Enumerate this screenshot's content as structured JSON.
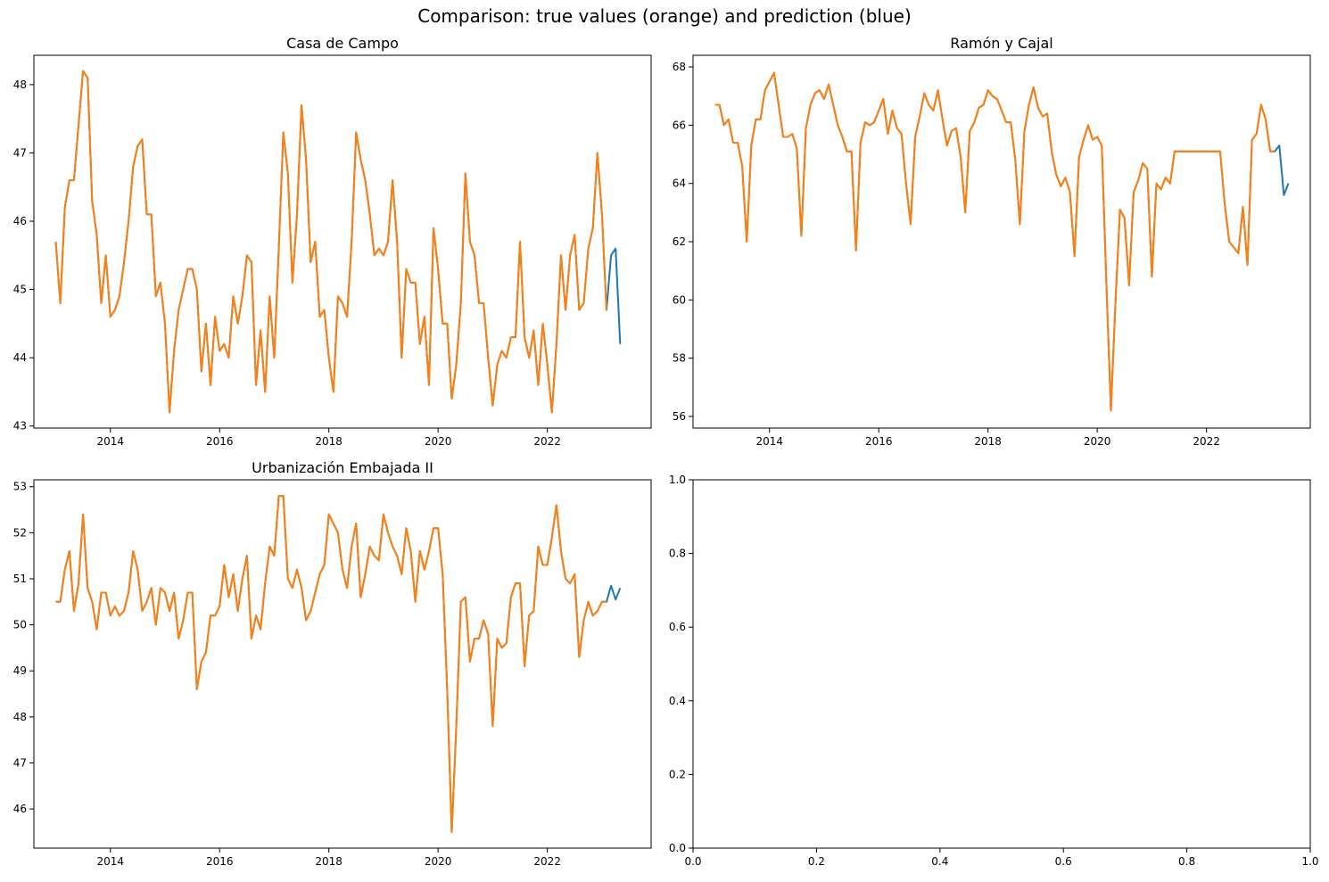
{
  "figure": {
    "suptitle": "Comparison: true values (orange) and prediction (blue)"
  },
  "colors": {
    "prediction": "#1f77b4",
    "true_values": "#ff7f0e",
    "axes": "#000000",
    "background": "#ffffff"
  },
  "chart_data": [
    {
      "type": "line",
      "title": "Casa de Campo",
      "xlabel": "",
      "ylabel": "",
      "x_start": "2013-01",
      "x_step": "1 month",
      "xlim": [
        2012.6,
        2023.9
      ],
      "ylim": [
        42.97,
        48.43
      ],
      "xticks": [
        2014,
        2016,
        2018,
        2020,
        2022
      ],
      "yticks": [
        43,
        44,
        45,
        46,
        47,
        48
      ],
      "grid": false,
      "series": [
        {
          "name": "prediction",
          "color": "#1f77b4",
          "values": [
            45.7,
            44.8,
            46.2,
            46.6,
            46.6,
            47.4,
            48.2,
            48.1,
            46.3,
            45.8,
            44.8,
            45.5,
            44.6,
            44.7,
            44.9,
            45.4,
            46.0,
            46.8,
            47.1,
            47.2,
            46.1,
            46.1,
            44.9,
            45.1,
            44.5,
            43.2,
            44.1,
            44.7,
            45.0,
            45.3,
            45.3,
            45.0,
            43.8,
            44.5,
            43.6,
            44.6,
            44.1,
            44.2,
            44.0,
            44.9,
            44.5,
            44.9,
            45.5,
            45.4,
            43.6,
            44.4,
            43.5,
            44.9,
            44.0,
            45.6,
            47.3,
            46.7,
            45.1,
            46.1,
            47.7,
            46.9,
            45.4,
            45.7,
            44.6,
            44.7,
            44.0,
            43.5,
            44.9,
            44.8,
            44.6,
            45.7,
            47.3,
            46.9,
            46.6,
            46.1,
            45.5,
            45.6,
            45.5,
            45.7,
            46.6,
            45.7,
            44.0,
            45.3,
            45.1,
            45.1,
            44.2,
            44.6,
            43.6,
            45.9,
            45.3,
            44.5,
            44.5,
            43.4,
            43.9,
            44.8,
            46.7,
            45.7,
            45.5,
            44.8,
            44.8,
            44.0,
            43.3,
            43.9,
            44.1,
            44.0,
            44.3,
            44.3,
            45.7,
            44.3,
            44.0,
            44.4,
            43.6,
            44.5,
            43.9,
            43.2,
            44.2,
            45.5,
            44.7,
            45.5,
            45.8,
            44.7,
            44.8,
            45.6,
            45.9,
            47.0,
            46.1,
            44.7,
            45.5,
            45.6,
            44.2
          ]
        },
        {
          "name": "true values",
          "color": "#ff7f0e",
          "values": [
            45.7,
            44.8,
            46.2,
            46.6,
            46.6,
            47.4,
            48.2,
            48.1,
            46.3,
            45.8,
            44.8,
            45.5,
            44.6,
            44.7,
            44.9,
            45.4,
            46.0,
            46.8,
            47.1,
            47.2,
            46.1,
            46.1,
            44.9,
            45.1,
            44.5,
            43.2,
            44.1,
            44.7,
            45.0,
            45.3,
            45.3,
            45.0,
            43.8,
            44.5,
            43.6,
            44.6,
            44.1,
            44.2,
            44.0,
            44.9,
            44.5,
            44.9,
            45.5,
            45.4,
            43.6,
            44.4,
            43.5,
            44.9,
            44.0,
            45.6,
            47.3,
            46.7,
            45.1,
            46.1,
            47.7,
            46.9,
            45.4,
            45.7,
            44.6,
            44.7,
            44.0,
            43.5,
            44.9,
            44.8,
            44.6,
            45.7,
            47.3,
            46.9,
            46.6,
            46.1,
            45.5,
            45.6,
            45.5,
            45.7,
            46.6,
            45.7,
            44.0,
            45.3,
            45.1,
            45.1,
            44.2,
            44.6,
            43.6,
            45.9,
            45.3,
            44.5,
            44.5,
            43.4,
            43.9,
            44.8,
            46.7,
            45.7,
            45.5,
            44.8,
            44.8,
            44.0,
            43.3,
            43.9,
            44.1,
            44.0,
            44.3,
            44.3,
            45.7,
            44.3,
            44.0,
            44.4,
            43.6,
            44.5,
            43.9,
            43.2,
            44.2,
            45.5,
            44.7,
            45.5,
            45.8,
            44.7,
            44.8,
            45.6,
            45.9,
            47.0,
            46.1,
            44.7
          ]
        }
      ]
    },
    {
      "type": "line",
      "title": "Ramón y Cajal",
      "xlabel": "",
      "ylabel": "",
      "x_start": "2013-01",
      "x_step": "1 month",
      "xlim": [
        2012.6,
        2023.9
      ],
      "ylim": [
        55.6,
        68.4
      ],
      "xticks": [
        2014,
        2016,
        2018,
        2020,
        2022
      ],
      "yticks": [
        56,
        58,
        60,
        62,
        64,
        66,
        68
      ],
      "grid": false,
      "series": [
        {
          "name": "prediction",
          "color": "#1f77b4",
          "values": [
            66.7,
            66.7,
            66.0,
            66.2,
            65.4,
            65.4,
            64.6,
            62.0,
            65.3,
            66.2,
            66.2,
            67.2,
            67.5,
            67.8,
            66.7,
            65.6,
            65.6,
            65.7,
            65.2,
            62.2,
            65.9,
            66.7,
            67.1,
            67.2,
            66.9,
            67.4,
            66.7,
            66.0,
            65.6,
            65.1,
            65.1,
            61.7,
            65.4,
            66.1,
            66.0,
            66.1,
            66.5,
            66.9,
            65.7,
            66.5,
            65.9,
            65.7,
            64.0,
            62.6,
            65.6,
            66.3,
            67.1,
            66.7,
            66.5,
            67.2,
            66.2,
            65.3,
            65.8,
            65.9,
            64.9,
            63.0,
            65.8,
            66.1,
            66.6,
            66.7,
            67.2,
            67.0,
            66.9,
            66.5,
            66.1,
            66.1,
            64.8,
            62.6,
            65.8,
            66.7,
            67.3,
            66.6,
            66.3,
            66.4,
            65.1,
            64.3,
            63.9,
            64.2,
            63.7,
            61.5,
            64.9,
            65.5,
            66.0,
            65.5,
            65.6,
            65.3,
            60.6,
            56.2,
            59.9,
            63.1,
            62.8,
            60.5,
            63.7,
            64.1,
            64.7,
            64.5,
            60.8,
            64.0,
            63.8,
            64.2,
            64.0,
            65.1,
            65.1,
            65.1,
            65.1,
            65.1,
            65.1,
            65.1,
            65.1,
            65.1,
            65.1,
            65.1,
            63.3,
            62.0,
            61.8,
            61.6,
            63.2,
            61.2,
            65.5,
            65.7,
            66.7,
            66.2,
            65.1,
            65.1,
            65.3,
            63.6,
            64.0
          ]
        },
        {
          "name": "true values",
          "color": "#ff7f0e",
          "values": [
            66.7,
            66.7,
            66.0,
            66.2,
            65.4,
            65.4,
            64.6,
            62.0,
            65.3,
            66.2,
            66.2,
            67.2,
            67.5,
            67.8,
            66.7,
            65.6,
            65.6,
            65.7,
            65.2,
            62.2,
            65.9,
            66.7,
            67.1,
            67.2,
            66.9,
            67.4,
            66.7,
            66.0,
            65.6,
            65.1,
            65.1,
            61.7,
            65.4,
            66.1,
            66.0,
            66.1,
            66.5,
            66.9,
            65.7,
            66.5,
            65.9,
            65.7,
            64.0,
            62.6,
            65.6,
            66.3,
            67.1,
            66.7,
            66.5,
            67.2,
            66.2,
            65.3,
            65.8,
            65.9,
            64.9,
            63.0,
            65.8,
            66.1,
            66.6,
            66.7,
            67.2,
            67.0,
            66.9,
            66.5,
            66.1,
            66.1,
            64.8,
            62.6,
            65.8,
            66.7,
            67.3,
            66.6,
            66.3,
            66.4,
            65.1,
            64.3,
            63.9,
            64.2,
            63.7,
            61.5,
            64.9,
            65.5,
            66.0,
            65.5,
            65.6,
            65.3,
            60.6,
            56.2,
            59.9,
            63.1,
            62.8,
            60.5,
            63.7,
            64.1,
            64.7,
            64.5,
            60.8,
            64.0,
            63.8,
            64.2,
            64.0,
            65.1,
            65.1,
            65.1,
            65.1,
            65.1,
            65.1,
            65.1,
            65.1,
            65.1,
            65.1,
            65.1,
            63.3,
            62.0,
            61.8,
            61.6,
            63.2,
            61.2,
            65.5,
            65.7,
            66.7,
            66.2,
            65.1,
            65.1
          ]
        }
      ]
    },
    {
      "type": "line",
      "title": "Urbanización Embajada II",
      "xlabel": "",
      "ylabel": "",
      "x_start": "2013-01",
      "x_step": "1 month",
      "xlim": [
        2012.6,
        2023.9
      ],
      "ylim": [
        45.15,
        53.15
      ],
      "xticks": [
        2014,
        2016,
        2018,
        2020,
        2022
      ],
      "yticks": [
        46,
        47,
        48,
        49,
        50,
        51,
        52,
        53
      ],
      "grid": false,
      "series": [
        {
          "name": "prediction",
          "color": "#1f77b4",
          "values": [
            50.5,
            50.5,
            51.2,
            51.6,
            50.3,
            50.9,
            52.4,
            50.8,
            50.5,
            49.9,
            50.7,
            50.7,
            50.2,
            50.4,
            50.2,
            50.3,
            50.7,
            51.6,
            51.2,
            50.3,
            50.5,
            50.8,
            50.0,
            50.8,
            50.7,
            50.3,
            50.7,
            49.7,
            50.1,
            50.7,
            50.7,
            48.6,
            49.2,
            49.4,
            50.2,
            50.2,
            50.4,
            51.3,
            50.6,
            51.1,
            50.3,
            51.0,
            51.5,
            49.7,
            50.2,
            49.9,
            50.9,
            51.7,
            51.5,
            52.8,
            52.8,
            51.0,
            50.8,
            51.2,
            50.8,
            50.1,
            50.3,
            50.7,
            51.1,
            51.3,
            52.4,
            52.2,
            52.0,
            51.2,
            50.8,
            51.7,
            52.2,
            50.6,
            51.1,
            51.7,
            51.5,
            51.4,
            52.4,
            52.0,
            51.7,
            51.5,
            51.1,
            52.1,
            51.6,
            50.5,
            51.6,
            51.2,
            51.6,
            52.1,
            52.1,
            51.1,
            48.6,
            45.5,
            47.8,
            50.5,
            50.6,
            49.2,
            49.7,
            49.7,
            50.1,
            49.8,
            47.8,
            49.7,
            49.5,
            49.6,
            50.6,
            50.9,
            50.9,
            49.1,
            50.2,
            50.3,
            51.7,
            51.3,
            51.3,
            51.9,
            52.6,
            51.6,
            51.0,
            50.9,
            51.1,
            49.3,
            50.1,
            50.5,
            50.2,
            50.3,
            50.5,
            50.5,
            50.85,
            50.55,
            50.8
          ]
        },
        {
          "name": "true values",
          "color": "#ff7f0e",
          "values": [
            50.5,
            50.5,
            51.2,
            51.6,
            50.3,
            50.9,
            52.4,
            50.8,
            50.5,
            49.9,
            50.7,
            50.7,
            50.2,
            50.4,
            50.2,
            50.3,
            50.7,
            51.6,
            51.2,
            50.3,
            50.5,
            50.8,
            50.0,
            50.8,
            50.7,
            50.3,
            50.7,
            49.7,
            50.1,
            50.7,
            50.7,
            48.6,
            49.2,
            49.4,
            50.2,
            50.2,
            50.4,
            51.3,
            50.6,
            51.1,
            50.3,
            51.0,
            51.5,
            49.7,
            50.2,
            49.9,
            50.9,
            51.7,
            51.5,
            52.8,
            52.8,
            51.0,
            50.8,
            51.2,
            50.8,
            50.1,
            50.3,
            50.7,
            51.1,
            51.3,
            52.4,
            52.2,
            52.0,
            51.2,
            50.8,
            51.7,
            52.2,
            50.6,
            51.1,
            51.7,
            51.5,
            51.4,
            52.4,
            52.0,
            51.7,
            51.5,
            51.1,
            52.1,
            51.6,
            50.5,
            51.6,
            51.2,
            51.6,
            52.1,
            52.1,
            51.1,
            48.6,
            45.5,
            47.8,
            50.5,
            50.6,
            49.2,
            49.7,
            49.7,
            50.1,
            49.8,
            47.8,
            49.7,
            49.5,
            49.6,
            50.6,
            50.9,
            50.9,
            49.1,
            50.2,
            50.3,
            51.7,
            51.3,
            51.3,
            51.9,
            52.6,
            51.6,
            51.0,
            50.9,
            51.1,
            49.3,
            50.1,
            50.5,
            50.2,
            50.3,
            50.5,
            50.5
          ]
        }
      ]
    },
    {
      "type": "line",
      "title": "",
      "xlabel": "",
      "ylabel": "",
      "xlim": [
        0,
        1
      ],
      "ylim": [
        0,
        1
      ],
      "xticks": [
        0.0,
        0.2,
        0.4,
        0.6,
        0.8,
        1.0
      ],
      "yticks": [
        0.0,
        0.2,
        0.4,
        0.6,
        0.8,
        1.0
      ],
      "xtick_labels": [
        "0.0",
        "0.2",
        "0.4",
        "0.6",
        "0.8",
        "1.0"
      ],
      "ytick_labels": [
        "0.0",
        "0.2",
        "0.4",
        "0.6",
        "0.8",
        "1.0"
      ],
      "grid": false,
      "series": []
    }
  ]
}
